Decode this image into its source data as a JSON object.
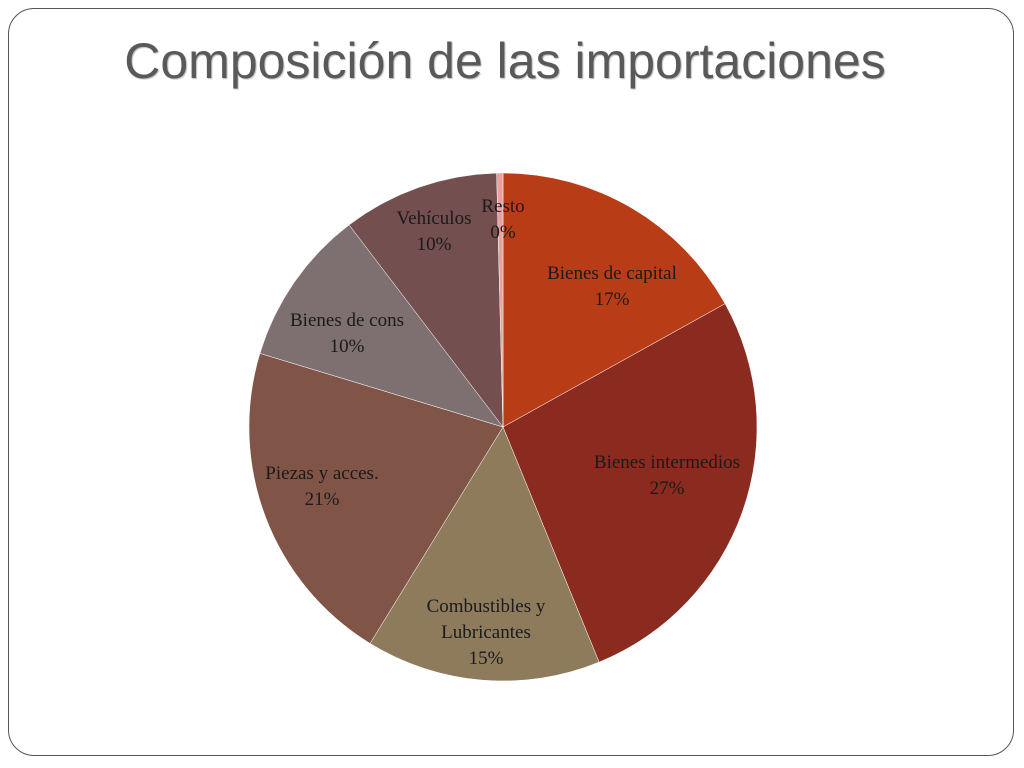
{
  "chart_data": {
    "type": "pie",
    "title": "Composición de las importaciones",
    "categories": [
      "Bienes de capital",
      "Bienes intermedios",
      "Combustibles y Lubricantes",
      "Piezas y acces.",
      "Bienes de cons",
      "Vehículos",
      "Resto"
    ],
    "values": [
      17,
      27,
      15,
      21,
      10,
      10,
      0.4
    ],
    "value_labels": [
      "17%",
      "27%",
      "15%",
      "21%",
      "10%",
      "10%",
      "0%"
    ],
    "colors": [
      "#b83d17",
      "#8b2a1e",
      "#8e7b5c",
      "#805548",
      "#7e7070",
      "#744f4f",
      "#e8a0a0"
    ]
  }
}
